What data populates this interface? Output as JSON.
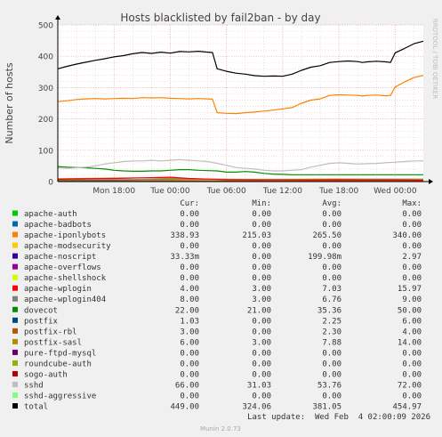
{
  "title": "Hosts blacklisted by fail2ban - by day",
  "ylabel": "Number of hosts",
  "watermark": "RRDTOOL / TOBI OETIKER",
  "footer": {
    "last_update": "Last update:  Wed Feb  4 02:00:09 2026",
    "version": "Munin 2.0.73"
  },
  "legend_headers": {
    "cur": "Cur:",
    "min": "Min:",
    "avg": "Avg:",
    "max": "Max:"
  },
  "legend": [
    {
      "name": "apache-auth",
      "color": "#00cc00",
      "cur": "0.00",
      "min": "0.00",
      "avg": "0.00",
      "max": "0.00"
    },
    {
      "name": "apache-badbots",
      "color": "#0066b3",
      "cur": "0.00",
      "min": "0.00",
      "avg": "0.00",
      "max": "0.00"
    },
    {
      "name": "apache-iponlybots",
      "color": "#ff8000",
      "cur": "338.93",
      "min": "215.03",
      "avg": "265.50",
      "max": "340.00"
    },
    {
      "name": "apache-modsecurity",
      "color": "#ffcc00",
      "cur": "0.00",
      "min": "0.00",
      "avg": "0.00",
      "max": "0.00"
    },
    {
      "name": "apache-noscript",
      "color": "#330099",
      "cur": "33.33m",
      "min": "0.00",
      "avg": "199.98m",
      "max": "2.97"
    },
    {
      "name": "apache-overflows",
      "color": "#990099",
      "cur": "0.00",
      "min": "0.00",
      "avg": "0.00",
      "max": "0.00"
    },
    {
      "name": "apache-shellshock",
      "color": "#ccff00",
      "cur": "0.00",
      "min": "0.00",
      "avg": "0.00",
      "max": "0.00"
    },
    {
      "name": "apache-wplogin",
      "color": "#ff0000",
      "cur": "4.00",
      "min": "3.00",
      "avg": "7.03",
      "max": "15.97"
    },
    {
      "name": "apache-wplogin404",
      "color": "#808080",
      "cur": "8.00",
      "min": "3.00",
      "avg": "6.76",
      "max": "9.00"
    },
    {
      "name": "dovecot",
      "color": "#008f00",
      "cur": "22.00",
      "min": "21.00",
      "avg": "35.36",
      "max": "50.00"
    },
    {
      "name": "postfix",
      "color": "#00487d",
      "cur": "1.03",
      "min": "0.00",
      "avg": "2.25",
      "max": "6.00"
    },
    {
      "name": "postfix-rbl",
      "color": "#b35a00",
      "cur": "3.00",
      "min": "0.00",
      "avg": "2.30",
      "max": "4.00"
    },
    {
      "name": "postfix-sasl",
      "color": "#b38f00",
      "cur": "6.00",
      "min": "3.00",
      "avg": "7.88",
      "max": "14.00"
    },
    {
      "name": "pure-ftpd-mysql",
      "color": "#6b006b",
      "cur": "0.00",
      "min": "0.00",
      "avg": "0.00",
      "max": "0.00"
    },
    {
      "name": "roundcube-auth",
      "color": "#8fb300",
      "cur": "0.00",
      "min": "0.00",
      "avg": "0.00",
      "max": "0.00"
    },
    {
      "name": "sogo-auth",
      "color": "#b30000",
      "cur": "0.00",
      "min": "0.00",
      "avg": "0.00",
      "max": "0.00"
    },
    {
      "name": "sshd",
      "color": "#bebebe",
      "cur": "66.00",
      "min": "31.03",
      "avg": "53.76",
      "max": "72.00"
    },
    {
      "name": "sshd-aggressive",
      "color": "#80ff80",
      "cur": "0.00",
      "min": "0.00",
      "avg": "0.00",
      "max": "0.00"
    },
    {
      "name": "total",
      "color": "#000000",
      "cur": "449.00",
      "min": "324.06",
      "avg": "381.05",
      "max": "454.97"
    }
  ],
  "chart_data": {
    "type": "line",
    "title": "Hosts blacklisted by fail2ban - by day",
    "xlabel": "",
    "ylabel": "Number of hosts",
    "ylim": [
      0,
      500
    ],
    "yticks": [
      0,
      100,
      200,
      300,
      400,
      500
    ],
    "x_range_hours": [
      -6,
      33
    ],
    "xticks": [
      {
        "label": "Mon 18:00",
        "hour": 0
      },
      {
        "label": "Tue 00:00",
        "hour": 6
      },
      {
        "label": "Tue 06:00",
        "hour": 12
      },
      {
        "label": "Tue 12:00",
        "hour": 18
      },
      {
        "label": "Tue 18:00",
        "hour": 24
      },
      {
        "label": "Wed 00:00",
        "hour": 30
      }
    ],
    "grid": true,
    "series": [
      {
        "name": "total",
        "color": "#000000",
        "points": [
          [
            -6,
            360
          ],
          [
            -5,
            368
          ],
          [
            -4,
            375
          ],
          [
            -3,
            381
          ],
          [
            -2,
            387
          ],
          [
            -1,
            392
          ],
          [
            0,
            398
          ],
          [
            1,
            402
          ],
          [
            2,
            408
          ],
          [
            3,
            412
          ],
          [
            4,
            409
          ],
          [
            5,
            413
          ],
          [
            6,
            410
          ],
          [
            7,
            415
          ],
          [
            8,
            414
          ],
          [
            9,
            416
          ],
          [
            10,
            413
          ],
          [
            10.5,
            412
          ],
          [
            11,
            360
          ],
          [
            12,
            352
          ],
          [
            13,
            346
          ],
          [
            14,
            343
          ],
          [
            15,
            338
          ],
          [
            16,
            336
          ],
          [
            17,
            337
          ],
          [
            18,
            336
          ],
          [
            19,
            343
          ],
          [
            20,
            355
          ],
          [
            21,
            365
          ],
          [
            22,
            370
          ],
          [
            23,
            380
          ],
          [
            24,
            383
          ],
          [
            25,
            385
          ],
          [
            26,
            383
          ],
          [
            26.5,
            380
          ],
          [
            27,
            382
          ],
          [
            28,
            384
          ],
          [
            29,
            382
          ],
          [
            29.5,
            380
          ],
          [
            30,
            411
          ],
          [
            31,
            425
          ],
          [
            32,
            440
          ],
          [
            33,
            448
          ]
        ]
      },
      {
        "name": "apache-iponlybots",
        "color": "#ff8000",
        "points": [
          [
            -6,
            255
          ],
          [
            -5,
            258
          ],
          [
            -4,
            262
          ],
          [
            -3,
            264
          ],
          [
            -2,
            265
          ],
          [
            -1,
            264
          ],
          [
            0,
            265
          ],
          [
            1,
            266
          ],
          [
            2,
            265
          ],
          [
            3,
            268
          ],
          [
            4,
            267
          ],
          [
            5,
            268
          ],
          [
            6,
            266
          ],
          [
            7,
            265
          ],
          [
            8,
            264
          ],
          [
            9,
            265
          ],
          [
            10,
            264
          ],
          [
            10.5,
            263
          ],
          [
            11,
            220
          ],
          [
            12,
            218
          ],
          [
            13,
            217
          ],
          [
            14,
            220
          ],
          [
            15,
            222
          ],
          [
            16,
            225
          ],
          [
            17,
            228
          ],
          [
            18,
            232
          ],
          [
            19,
            236
          ],
          [
            20,
            250
          ],
          [
            21,
            260
          ],
          [
            22,
            264
          ],
          [
            23,
            275
          ],
          [
            24,
            277
          ],
          [
            25,
            276
          ],
          [
            26,
            275
          ],
          [
            26.5,
            273
          ],
          [
            27,
            275
          ],
          [
            28,
            276
          ],
          [
            29,
            274
          ],
          [
            29.5,
            275
          ],
          [
            30,
            302
          ],
          [
            31,
            318
          ],
          [
            32,
            332
          ],
          [
            33,
            339
          ]
        ]
      },
      {
        "name": "sshd",
        "color": "#bebebe",
        "points": [
          [
            -6,
            44
          ],
          [
            -5,
            42
          ],
          [
            -4,
            44
          ],
          [
            -3,
            46
          ],
          [
            -2,
            50
          ],
          [
            -1,
            56
          ],
          [
            0,
            60
          ],
          [
            1,
            64
          ],
          [
            2,
            66
          ],
          [
            3,
            66
          ],
          [
            4,
            68
          ],
          [
            5,
            66
          ],
          [
            6,
            68
          ],
          [
            7,
            70
          ],
          [
            8,
            68
          ],
          [
            9,
            66
          ],
          [
            10,
            64
          ],
          [
            11,
            58
          ],
          [
            12,
            52
          ],
          [
            13,
            45
          ],
          [
            14,
            42
          ],
          [
            15,
            40
          ],
          [
            16,
            36
          ],
          [
            17,
            34
          ],
          [
            18,
            34
          ],
          [
            19,
            36
          ],
          [
            20,
            38
          ],
          [
            21,
            46
          ],
          [
            22,
            52
          ],
          [
            23,
            58
          ],
          [
            24,
            60
          ],
          [
            25,
            58
          ],
          [
            26,
            56
          ],
          [
            27,
            57
          ],
          [
            28,
            58
          ],
          [
            29,
            60
          ],
          [
            30,
            62
          ],
          [
            31,
            64
          ],
          [
            32,
            66
          ],
          [
            33,
            66
          ]
        ]
      },
      {
        "name": "dovecot",
        "color": "#008f00",
        "points": [
          [
            -6,
            48
          ],
          [
            -5,
            46
          ],
          [
            -4,
            45
          ],
          [
            -3,
            44
          ],
          [
            -2,
            42
          ],
          [
            -1,
            40
          ],
          [
            0,
            36
          ],
          [
            1,
            34
          ],
          [
            2,
            33
          ],
          [
            3,
            33
          ],
          [
            4,
            34
          ],
          [
            5,
            34
          ],
          [
            6,
            36
          ],
          [
            7,
            38
          ],
          [
            8,
            38
          ],
          [
            9,
            36
          ],
          [
            10,
            35
          ],
          [
            11,
            34
          ],
          [
            12,
            30
          ],
          [
            13,
            30
          ],
          [
            14,
            32
          ],
          [
            15,
            30
          ],
          [
            16,
            26
          ],
          [
            17,
            24
          ],
          [
            18,
            23
          ],
          [
            19,
            22
          ],
          [
            20,
            22
          ],
          [
            21,
            22
          ],
          [
            22,
            22
          ],
          [
            23,
            22
          ],
          [
            24,
            22
          ],
          [
            25,
            22
          ],
          [
            26,
            22
          ],
          [
            27,
            22
          ],
          [
            28,
            22
          ],
          [
            29,
            22
          ],
          [
            30,
            22
          ],
          [
            31,
            22
          ],
          [
            32,
            22
          ],
          [
            33,
            22
          ]
        ]
      },
      {
        "name": "apache-wplogin",
        "color": "#ff0000",
        "points": [
          [
            -6,
            7
          ],
          [
            -3,
            9
          ],
          [
            0,
            10
          ],
          [
            3,
            12
          ],
          [
            6,
            14
          ],
          [
            8,
            10
          ],
          [
            10,
            8
          ],
          [
            12,
            6
          ],
          [
            15,
            5
          ],
          [
            18,
            5
          ],
          [
            21,
            5
          ],
          [
            24,
            6
          ],
          [
            27,
            5
          ],
          [
            30,
            5
          ],
          [
            33,
            4
          ]
        ]
      },
      {
        "name": "postfix-sasl",
        "color": "#b38f00",
        "points": [
          [
            -6,
            9
          ],
          [
            -3,
            10
          ],
          [
            0,
            11
          ],
          [
            3,
            12
          ],
          [
            6,
            10
          ],
          [
            9,
            8
          ],
          [
            12,
            7
          ],
          [
            15,
            6
          ],
          [
            18,
            6
          ],
          [
            21,
            7
          ],
          [
            24,
            7
          ],
          [
            27,
            6
          ],
          [
            30,
            6
          ],
          [
            33,
            6
          ]
        ]
      },
      {
        "name": "apache-wplogin404",
        "color": "#808080",
        "points": [
          [
            -6,
            5
          ],
          [
            0,
            6
          ],
          [
            6,
            7
          ],
          [
            12,
            7
          ],
          [
            18,
            7
          ],
          [
            24,
            8
          ],
          [
            30,
            8
          ],
          [
            33,
            8
          ]
        ]
      },
      {
        "name": "postfix-rbl",
        "color": "#b35a00",
        "points": [
          [
            -6,
            2
          ],
          [
            0,
            2
          ],
          [
            6,
            3
          ],
          [
            12,
            2
          ],
          [
            18,
            2
          ],
          [
            24,
            3
          ],
          [
            30,
            3
          ],
          [
            33,
            3
          ]
        ]
      },
      {
        "name": "postfix",
        "color": "#00487d",
        "points": [
          [
            -6,
            3
          ],
          [
            0,
            3
          ],
          [
            6,
            2
          ],
          [
            12,
            2
          ],
          [
            18,
            1
          ],
          [
            24,
            1
          ],
          [
            30,
            1
          ],
          [
            33,
            1
          ]
        ]
      }
    ]
  }
}
